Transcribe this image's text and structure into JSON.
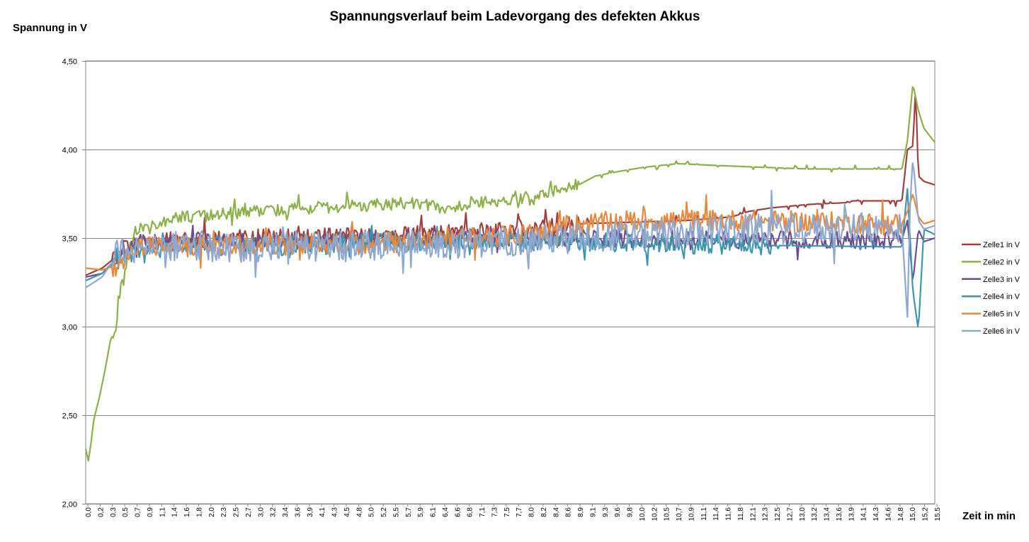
{
  "chart_data": {
    "type": "line",
    "title": "Spannungsverlauf beim Ladevorgang des defekten Akkus",
    "ylabel": "Spannung in V",
    "xlabel": "Zeit in min",
    "ylim": [
      2.0,
      4.5
    ],
    "yticks": [
      "2,00",
      "2,50",
      "3,00",
      "3,50",
      "4,00",
      "4,50"
    ],
    "ytick_values": [
      2.0,
      2.5,
      3.0,
      3.5,
      4.0,
      4.5
    ],
    "x_tick_labels": [
      "0,0",
      "0,2",
      "0,3",
      "0,5",
      "0,7",
      "0,9",
      "1,1",
      "1,4",
      "1,6",
      "1,8",
      "2,0",
      "2,3",
      "2,5",
      "2,7",
      "3,0",
      "3,2",
      "3,4",
      "3,6",
      "3,9",
      "4,1",
      "4,3",
      "4,5",
      "4,8",
      "5,0",
      "5,2",
      "5,5",
      "5,7",
      "5,9",
      "6,1",
      "6,4",
      "6,6",
      "6,8",
      "7,1",
      "7,3",
      "7,5",
      "7,7",
      "8,0",
      "8,2",
      "8,4",
      "8,6",
      "8,9",
      "9,1",
      "9,3",
      "9,6",
      "9,8",
      "10,0",
      "10,2",
      "10,5",
      "10,7",
      "10,9",
      "11,1",
      "11,4",
      "11,6",
      "11,8",
      "12,1",
      "12,3",
      "12,5",
      "12,7",
      "13,0",
      "13,2",
      "13,4",
      "13,6",
      "13,9",
      "14,1",
      "14,3",
      "14,6",
      "14,8",
      "15,0",
      "15,2",
      "15,5"
    ],
    "grid": "horizontal",
    "legend_position": "right",
    "series": [
      {
        "name": "Zelle1 in V",
        "color": "#A0403E",
        "base": [
          [
            0,
            3.29
          ],
          [
            0.3,
            3.33
          ],
          [
            0.5,
            3.38
          ],
          [
            0.7,
            3.45
          ],
          [
            1.1,
            3.48
          ],
          [
            3,
            3.5
          ],
          [
            6,
            3.52
          ],
          [
            8,
            3.55
          ],
          [
            9,
            3.58
          ],
          [
            10,
            3.59
          ],
          [
            11,
            3.6
          ],
          [
            11.8,
            3.62
          ],
          [
            12.1,
            3.65
          ],
          [
            12.5,
            3.67
          ],
          [
            13.2,
            3.69
          ],
          [
            13.9,
            3.7
          ],
          [
            14,
            3.71
          ],
          [
            14.9,
            3.71
          ],
          [
            15.0,
            4.0
          ],
          [
            15.1,
            4.02
          ],
          [
            15.15,
            4.35
          ],
          [
            15.2,
            3.85
          ],
          [
            15.3,
            3.82
          ],
          [
            15.5,
            3.8
          ]
        ],
        "noise_until": 9.0,
        "noise": 0.05
      },
      {
        "name": "Zelle2 in V",
        "color": "#8EB04A",
        "base": [
          [
            0,
            2.31
          ],
          [
            0.05,
            2.24
          ],
          [
            0.1,
            2.35
          ],
          [
            0.15,
            2.48
          ],
          [
            0.25,
            2.6
          ],
          [
            0.35,
            2.75
          ],
          [
            0.45,
            2.92
          ],
          [
            0.55,
            3.0
          ],
          [
            0.6,
            3.15
          ],
          [
            0.7,
            3.3
          ],
          [
            0.8,
            3.45
          ],
          [
            1.0,
            3.55
          ],
          [
            1.3,
            3.58
          ],
          [
            1.6,
            3.62
          ],
          [
            2.0,
            3.62
          ],
          [
            3.0,
            3.65
          ],
          [
            4.0,
            3.67
          ],
          [
            5.0,
            3.68
          ],
          [
            6.0,
            3.7
          ],
          [
            6.6,
            3.66
          ],
          [
            7.0,
            3.7
          ],
          [
            7.5,
            3.71
          ],
          [
            8.2,
            3.72
          ],
          [
            8.6,
            3.78
          ],
          [
            9.0,
            3.8
          ],
          [
            9.3,
            3.85
          ],
          [
            9.8,
            3.88
          ],
          [
            10.2,
            3.9
          ],
          [
            10.8,
            3.92
          ],
          [
            11.5,
            3.91
          ],
          [
            12.3,
            3.9
          ],
          [
            13.2,
            3.89
          ],
          [
            14.0,
            3.89
          ],
          [
            14.9,
            3.89
          ],
          [
            15.0,
            4.05
          ],
          [
            15.1,
            4.37
          ],
          [
            15.2,
            4.22
          ],
          [
            15.3,
            4.12
          ],
          [
            15.4,
            4.08
          ],
          [
            15.5,
            4.04
          ]
        ],
        "noise_until": 9.0,
        "noise": 0.035
      },
      {
        "name": "Zelle3 in V",
        "color": "#6A4F8E",
        "base": [
          [
            0,
            3.28
          ],
          [
            0.3,
            3.3
          ],
          [
            0.6,
            3.4
          ],
          [
            1.0,
            3.47
          ],
          [
            3,
            3.48
          ],
          [
            6,
            3.5
          ],
          [
            9,
            3.5
          ],
          [
            12,
            3.49
          ],
          [
            14.9,
            3.49
          ],
          [
            15.0,
            3.6
          ],
          [
            15.1,
            3.25
          ],
          [
            15.2,
            3.55
          ],
          [
            15.3,
            3.48
          ],
          [
            15.5,
            3.5
          ]
        ],
        "noise_until": 14.9,
        "noise": 0.05
      },
      {
        "name": "Zelle4 in V",
        "color": "#3D96AE",
        "base": [
          [
            0,
            3.26
          ],
          [
            0.3,
            3.3
          ],
          [
            0.6,
            3.38
          ],
          [
            1.0,
            3.44
          ],
          [
            3,
            3.46
          ],
          [
            6,
            3.48
          ],
          [
            9,
            3.48
          ],
          [
            12,
            3.46
          ],
          [
            14.9,
            3.45
          ],
          [
            15.0,
            3.78
          ],
          [
            15.1,
            3.2
          ],
          [
            15.2,
            2.98
          ],
          [
            15.3,
            3.55
          ],
          [
            15.5,
            3.52
          ]
        ],
        "noise_until": 12.5,
        "noise": 0.055
      },
      {
        "name": "Zelle5 in V",
        "color": "#E6893C",
        "base": [
          [
            0,
            3.33
          ],
          [
            0.3,
            3.32
          ],
          [
            0.6,
            3.35
          ],
          [
            1.0,
            3.45
          ],
          [
            3,
            3.46
          ],
          [
            6,
            3.48
          ],
          [
            8,
            3.52
          ],
          [
            9,
            3.58
          ],
          [
            10,
            3.6
          ],
          [
            12,
            3.6
          ],
          [
            14.9,
            3.58
          ],
          [
            15.0,
            3.65
          ],
          [
            15.1,
            3.75
          ],
          [
            15.2,
            3.62
          ],
          [
            15.3,
            3.58
          ],
          [
            15.5,
            3.6
          ]
        ],
        "noise_until": 14.9,
        "noise": 0.06
      },
      {
        "name": "Zelle6 in V",
        "color": "#8FA8D0",
        "base": [
          [
            0,
            3.22
          ],
          [
            0.3,
            3.28
          ],
          [
            0.6,
            3.42
          ],
          [
            1.0,
            3.44
          ],
          [
            3,
            3.45
          ],
          [
            6,
            3.46
          ],
          [
            9,
            3.5
          ],
          [
            12,
            3.55
          ],
          [
            14.9,
            3.56
          ],
          [
            15.0,
            3.05
          ],
          [
            15.05,
            3.7
          ],
          [
            15.1,
            3.95
          ],
          [
            15.2,
            3.6
          ],
          [
            15.3,
            3.55
          ],
          [
            15.5,
            3.57
          ]
        ],
        "noise_until": 14.9,
        "noise": 0.085
      }
    ]
  }
}
